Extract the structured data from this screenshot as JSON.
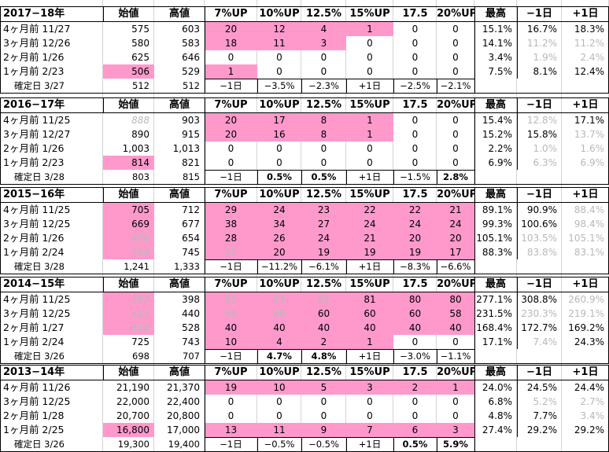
{
  "header_labels": {
    "hajimene": "始値",
    "takane": "高値",
    "up7": "7%UP",
    "up10": "10%UP",
    "up125": "12.5%",
    "up15": "15%UP",
    "up175": "17.5",
    "up20": "20%UP",
    "saiko": "最高",
    "minus1": "−1日",
    "plus1": "+1日"
  },
  "years": [
    {
      "title": "2017−18年",
      "rows": [
        {
          "label": "4ヶ月前  11/27",
          "open": "575",
          "open_pink": false,
          "open_gray": false,
          "high": "603",
          "pct": [
            "20",
            "12",
            "4",
            "1",
            "0",
            "0"
          ],
          "pink": [
            1,
            1,
            1,
            1,
            0,
            0
          ],
          "pct_gray": [
            0,
            0,
            0,
            0,
            0,
            0
          ],
          "max": "15.1%",
          "m1": "16.7%",
          "m1g": false,
          "p1": "18.3%",
          "p1g": false
        },
        {
          "label": "3ヶ月前  12/26",
          "open": "580",
          "open_pink": false,
          "open_gray": false,
          "high": "583",
          "pct": [
            "18",
            "11",
            "3",
            "0",
            "0",
            "0"
          ],
          "pink": [
            1,
            1,
            1,
            0,
            0,
            0
          ],
          "pct_gray": [
            0,
            0,
            0,
            0,
            0,
            0
          ],
          "max": "14.1%",
          "m1": "11.2%",
          "m1g": true,
          "p1": "11.2%",
          "p1g": true
        },
        {
          "label": "2ヶ月前   1/26",
          "open": "625",
          "open_pink": false,
          "open_gray": false,
          "high": "646",
          "pct": [
            "0",
            "0",
            "0",
            "0",
            "0",
            "0"
          ],
          "pink": [
            0,
            0,
            0,
            0,
            0,
            0
          ],
          "pct_gray": [
            0,
            0,
            0,
            0,
            0,
            0
          ],
          "max": "3.4%",
          "m1": "1.9%",
          "m1g": true,
          "p1": "2.4%",
          "p1g": true
        },
        {
          "label": "1ヶ月前   2/23",
          "open": "506",
          "open_pink": true,
          "open_gray": false,
          "high": "529",
          "pct": [
            "1",
            "0",
            "0",
            "0",
            "0",
            "0"
          ],
          "pink": [
            1,
            0,
            0,
            0,
            0,
            0
          ],
          "pct_gray": [
            0,
            0,
            0,
            0,
            0,
            0
          ],
          "max": "7.5%",
          "m1": "8.1%",
          "m1g": false,
          "p1": "12.4%",
          "p1g": false
        }
      ],
      "confirm": {
        "label": "確定日   3/27",
        "open": "512",
        "high": "512",
        "vals": [
          "−1日",
          "−3.5%",
          "−2.3%",
          "+1日",
          "−2.5%",
          "−2.1%"
        ],
        "bold": [
          0,
          0,
          0,
          0,
          0,
          0
        ]
      }
    },
    {
      "title": "2016−17年",
      "rows": [
        {
          "label": "4ヶ月前  11/25",
          "open": "888",
          "open_pink": false,
          "open_gray": true,
          "high": "903",
          "pct": [
            "20",
            "17",
            "8",
            "1",
            "0",
            "0"
          ],
          "pink": [
            1,
            1,
            1,
            1,
            0,
            0
          ],
          "pct_gray": [
            0,
            0,
            0,
            0,
            0,
            0
          ],
          "max": "15.4%",
          "m1": "12.8%",
          "m1g": true,
          "p1": "17.1%",
          "p1g": false
        },
        {
          "label": "3ヶ月前  12/27",
          "open": "890",
          "open_pink": false,
          "open_gray": false,
          "high": "915",
          "pct": [
            "20",
            "16",
            "8",
            "1",
            "0",
            "0"
          ],
          "pink": [
            1,
            1,
            1,
            1,
            0,
            0
          ],
          "pct_gray": [
            0,
            0,
            0,
            0,
            0,
            0
          ],
          "max": "15.2%",
          "m1": "15.8%",
          "m1g": false,
          "p1": "13.7%",
          "p1g": true
        },
        {
          "label": "2ヶ月前   1/26",
          "open": "1,003",
          "open_pink": false,
          "open_gray": false,
          "high": "1,013",
          "pct": [
            "0",
            "0",
            "0",
            "0",
            "0",
            "0"
          ],
          "pink": [
            0,
            0,
            0,
            0,
            0,
            0
          ],
          "pct_gray": [
            0,
            0,
            0,
            0,
            0,
            0
          ],
          "max": "2.2%",
          "m1": "1.0%",
          "m1g": true,
          "p1": "1.6%",
          "p1g": true
        },
        {
          "label": "1ヶ月前   2/23",
          "open": "814",
          "open_pink": true,
          "open_gray": false,
          "high": "821",
          "pct": [
            "0",
            "0",
            "0",
            "0",
            "0",
            "0"
          ],
          "pink": [
            0,
            0,
            0,
            0,
            0,
            0
          ],
          "pct_gray": [
            0,
            0,
            0,
            0,
            0,
            0
          ],
          "max": "6.9%",
          "m1": "6.3%",
          "m1g": true,
          "p1": "6.9%",
          "p1g": true
        }
      ],
      "confirm": {
        "label": "確定日   3/28",
        "open": "803",
        "high": "815",
        "vals": [
          "−1日",
          "0.5%",
          "0.5%",
          "+1日",
          "−1.5%",
          "2.8%"
        ],
        "bold": [
          0,
          1,
          1,
          0,
          0,
          1
        ]
      }
    },
    {
      "title": "2015−16年",
      "rows": [
        {
          "label": "4ヶ月前  11/25",
          "open": "705",
          "open_pink": true,
          "open_gray": false,
          "high": "712",
          "pct": [
            "29",
            "24",
            "23",
            "22",
            "22",
            "21"
          ],
          "pink": [
            1,
            1,
            1,
            1,
            1,
            1
          ],
          "pct_gray": [
            0,
            0,
            0,
            0,
            0,
            0
          ],
          "max": "89.1%",
          "m1": "90.9%",
          "m1g": false,
          "p1": "88.4%",
          "p1g": true
        },
        {
          "label": "3ヶ月前  12/25",
          "open": "669",
          "open_pink": true,
          "open_gray": false,
          "high": "677",
          "pct": [
            "38",
            "34",
            "27",
            "24",
            "24",
            "24"
          ],
          "pink": [
            1,
            1,
            1,
            1,
            1,
            1
          ],
          "pct_gray": [
            0,
            0,
            0,
            0,
            0,
            0
          ],
          "max": "99.3%",
          "m1": "100.6%",
          "m1g": false,
          "p1": "98.4%",
          "p1g": true
        },
        {
          "label": "2ヶ月前   1/26",
          "open": "650",
          "open_pink": true,
          "open_gray": true,
          "high": "654",
          "pct": [
            "28",
            "26",
            "24",
            "21",
            "20",
            "20"
          ],
          "pink": [
            1,
            1,
            1,
            1,
            1,
            1
          ],
          "pct_gray": [
            0,
            0,
            0,
            0,
            0,
            0
          ],
          "max": "105.1%",
          "m1": "103.5%",
          "m1g": true,
          "p1": "105.1%",
          "p1g": true
        },
        {
          "label": "1ヶ月前   2/24",
          "open": "708",
          "open_pink": true,
          "open_gray": true,
          "high": "745",
          "pct": [
            "20",
            "20",
            "19",
            "19",
            "19",
            "17"
          ],
          "pink": [
            1,
            1,
            1,
            1,
            1,
            1
          ],
          "pct_gray": [
            1,
            0,
            0,
            0,
            0,
            0
          ],
          "max": "88.3%",
          "m1": "83.8%",
          "m1g": true,
          "p1": "83.1%",
          "p1g": true
        }
      ],
      "confirm": {
        "label": "確定日   3/28",
        "open": "1,241",
        "high": "1,333",
        "vals": [
          "−1日",
          "−11.2%",
          "−6.1%",
          "+1日",
          "−8.3%",
          "−6.6%"
        ],
        "bold": [
          0,
          0,
          0,
          0,
          0,
          0
        ]
      }
    },
    {
      "title": "2014−15年",
      "rows": [
        {
          "label": "4ヶ月前  11/25",
          "open": "363",
          "open_pink": true,
          "open_gray": true,
          "high": "398",
          "pct": [
            "82",
            "81",
            "81",
            "81",
            "80",
            "80"
          ],
          "pink": [
            1,
            1,
            1,
            1,
            1,
            1
          ],
          "pct_gray": [
            1,
            1,
            1,
            0,
            0,
            0
          ],
          "max": "277.1%",
          "m1": "308.8%",
          "m1g": false,
          "p1": "260.9%",
          "p1g": true
        },
        {
          "label": "3ヶ月前  12/25",
          "open": "413",
          "open_pink": true,
          "open_gray": true,
          "high": "440",
          "pct": [
            "60",
            "60",
            "60",
            "60",
            "60",
            "58"
          ],
          "pink": [
            1,
            1,
            1,
            1,
            1,
            1
          ],
          "pct_gray": [
            1,
            1,
            0,
            0,
            0,
            0
          ],
          "max": "231.5%",
          "m1": "230.3%",
          "m1g": true,
          "p1": "219.1%",
          "p1g": true
        },
        {
          "label": "2ヶ月前   1/27",
          "open": "510",
          "open_pink": true,
          "open_gray": true,
          "high": "528",
          "pct": [
            "40",
            "40",
            "40",
            "40",
            "40",
            "40"
          ],
          "pink": [
            1,
            1,
            1,
            1,
            1,
            1
          ],
          "pct_gray": [
            0,
            0,
            0,
            0,
            0,
            0
          ],
          "max": "168.4%",
          "m1": "172.7%",
          "m1g": false,
          "p1": "169.2%",
          "p1g": false
        },
        {
          "label": "1ヶ月前   2/24",
          "open": "725",
          "open_pink": false,
          "open_gray": false,
          "high": "743",
          "pct": [
            "10",
            "4",
            "2",
            "1",
            "0",
            "0"
          ],
          "pink": [
            1,
            1,
            1,
            1,
            0,
            0
          ],
          "pct_gray": [
            0,
            0,
            0,
            0,
            0,
            0
          ],
          "max": "17.1%",
          "m1": "7.4%",
          "m1g": true,
          "p1": "24.3%",
          "p1g": false
        }
      ],
      "confirm": {
        "label": "確定日   3/26",
        "open": "698",
        "high": "707",
        "vals": [
          "−1日",
          "4.7%",
          "4.8%",
          "+1日",
          "−3.0%",
          "−1.1%"
        ],
        "bold": [
          0,
          1,
          1,
          0,
          0,
          0
        ]
      }
    },
    {
      "title": "2013−14年",
      "rows": [
        {
          "label": "4ヶ月前  11/26",
          "open": "21,190",
          "open_pink": false,
          "open_gray": false,
          "high": "21,370",
          "pct": [
            "19",
            "10",
            "5",
            "3",
            "2",
            "1"
          ],
          "pink": [
            1,
            1,
            1,
            1,
            1,
            1
          ],
          "pct_gray": [
            0,
            0,
            0,
            0,
            0,
            0
          ],
          "max": "24.0%",
          "m1": "24.5%",
          "m1g": false,
          "p1": "24.4%",
          "p1g": false
        },
        {
          "label": "3ヶ月前  12/25",
          "open": "22,000",
          "open_pink": false,
          "open_gray": false,
          "high": "22,400",
          "pct": [
            "0",
            "0",
            "0",
            "0",
            "0",
            "0"
          ],
          "pink": [
            0,
            0,
            0,
            0,
            0,
            0
          ],
          "pct_gray": [
            0,
            0,
            0,
            0,
            0,
            0
          ],
          "max": "6.8%",
          "m1": "5.2%",
          "m1g": true,
          "p1": "2.7%",
          "p1g": true
        },
        {
          "label": "2ヶ月前   1/28",
          "open": "20,700",
          "open_pink": false,
          "open_gray": false,
          "high": "20,800",
          "pct": [
            "0",
            "0",
            "0",
            "0",
            "0",
            "0"
          ],
          "pink": [
            0,
            0,
            0,
            0,
            0,
            0
          ],
          "pct_gray": [
            0,
            0,
            0,
            0,
            0,
            0
          ],
          "max": "4.8%",
          "m1": "7.7%",
          "m1g": false,
          "p1": "3.4%",
          "p1g": true
        },
        {
          "label": "1ヶ月前   2/25",
          "open": "16,800",
          "open_pink": true,
          "open_gray": false,
          "high": "17,000",
          "pct": [
            "13",
            "11",
            "9",
            "7",
            "6",
            "3"
          ],
          "pink": [
            1,
            1,
            1,
            1,
            1,
            1
          ],
          "pct_gray": [
            0,
            0,
            0,
            0,
            0,
            0
          ],
          "max": "27.4%",
          "m1": "29.2%",
          "m1g": false,
          "p1": "29.2%",
          "p1g": false
        }
      ],
      "confirm": {
        "label": "確定日   3/26",
        "open": "19,300",
        "high": "19,400",
        "vals": [
          "−1日",
          "−0.5%",
          "−0.5%",
          "+1日",
          "0.5%",
          "5.9%"
        ],
        "bold": [
          0,
          0,
          0,
          0,
          1,
          1
        ]
      }
    }
  ]
}
